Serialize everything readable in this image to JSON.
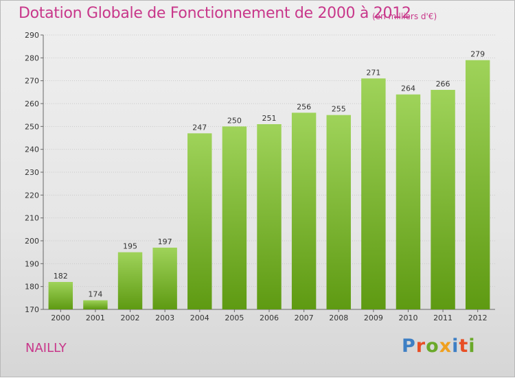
{
  "header": {
    "title": "Dotation Globale de Fonctionnement de 2000 à 2012",
    "unit": "(en milliers d'€)"
  },
  "footer": {
    "commune": "NAILLY",
    "logo": "Proxiti"
  },
  "colors": {
    "title": "#c8378a",
    "bar_top": "#9fd35a",
    "bar_bottom": "#5e9a12",
    "logo": [
      "#3e7fc4",
      "#e84f25",
      "#6aa92a",
      "#f0a01f",
      "#3e7fc4",
      "#e84f25",
      "#6aa92a"
    ]
  },
  "chart_data": {
    "type": "bar",
    "title": "Dotation Globale de Fonctionnement de 2000 à 2012",
    "subtitle": "(en milliers d'€)",
    "categories": [
      "2000",
      "2001",
      "2002",
      "2003",
      "2004",
      "2005",
      "2006",
      "2007",
      "2008",
      "2009",
      "2010",
      "2011",
      "2012"
    ],
    "values": [
      182,
      174,
      195,
      197,
      247,
      250,
      251,
      256,
      255,
      271,
      264,
      266,
      279
    ],
    "ylim": [
      170,
      290
    ],
    "yticks": [
      170,
      180,
      190,
      200,
      210,
      220,
      230,
      240,
      250,
      260,
      270,
      280,
      290
    ],
    "grid": true,
    "legend": false
  }
}
